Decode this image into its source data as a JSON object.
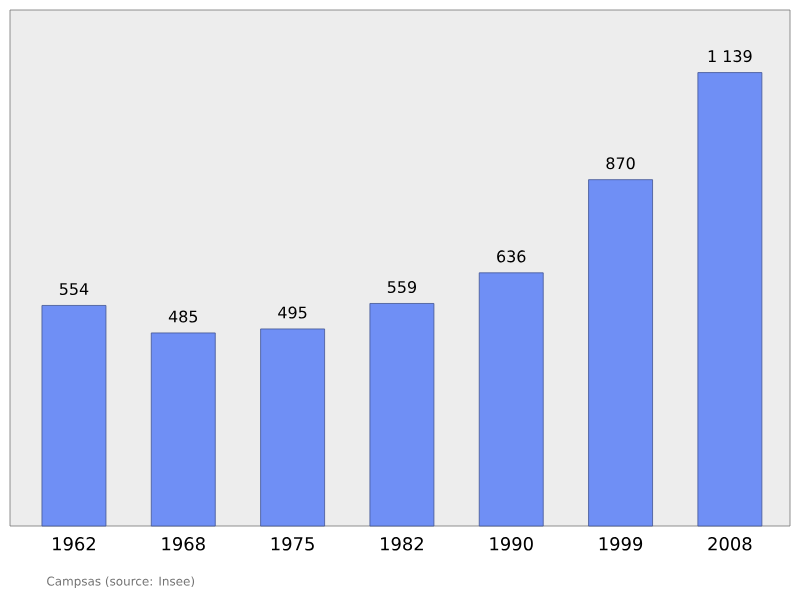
{
  "chart_data": {
    "type": "bar",
    "categories": [
      "1962",
      "1968",
      "1975",
      "1982",
      "1990",
      "1999",
      "2008"
    ],
    "values": [
      554,
      485,
      495,
      559,
      636,
      870,
      1139
    ],
    "value_labels": [
      "554",
      "485",
      "495",
      "559",
      "636",
      "870",
      "1 139"
    ],
    "color": "#6f8ff5",
    "annotations": [
      "Campsas    (source: Insee)"
    ]
  }
}
